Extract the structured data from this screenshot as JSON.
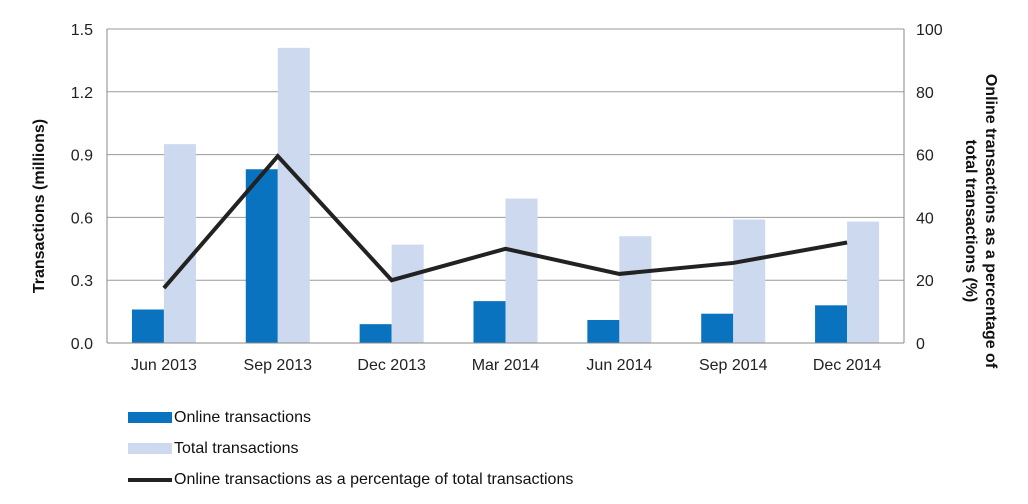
{
  "chart_data": {
    "type": "bar",
    "categories": [
      "Jun 2013",
      "Sep 2013",
      "Dec 2013",
      "Mar 2014",
      "Jun 2014",
      "Sep 2014",
      "Dec 2014"
    ],
    "series": [
      {
        "name": "Online transactions",
        "axis": "left",
        "type": "bar",
        "color": "#0a73bf",
        "values": [
          0.16,
          0.83,
          0.09,
          0.2,
          0.11,
          0.14,
          0.18
        ]
      },
      {
        "name": "Total transactions",
        "axis": "left",
        "type": "bar",
        "color": "#ccd9ef",
        "values": [
          0.95,
          1.41,
          0.47,
          0.69,
          0.51,
          0.59,
          0.58
        ]
      },
      {
        "name": "Online transactions as a percentage of total transactions",
        "axis": "right",
        "type": "line",
        "color": "#222222",
        "values": [
          17.5,
          59.5,
          20,
          30,
          22,
          25.5,
          32
        ]
      }
    ],
    "ylabel": "Transactions (millions)",
    "y2label_line1": "Online transactions as a percentage of",
    "y2label_line2": "total transactions (%)",
    "ylim": [
      0,
      1.5
    ],
    "y2lim": [
      0,
      100
    ],
    "yticks": [
      "0.0",
      "0.3",
      "0.6",
      "0.9",
      "1.2",
      "1.5"
    ],
    "y2ticks": [
      "0",
      "20",
      "40",
      "60",
      "80",
      "100"
    ],
    "grid": true,
    "legend_position": "bottom-left"
  }
}
